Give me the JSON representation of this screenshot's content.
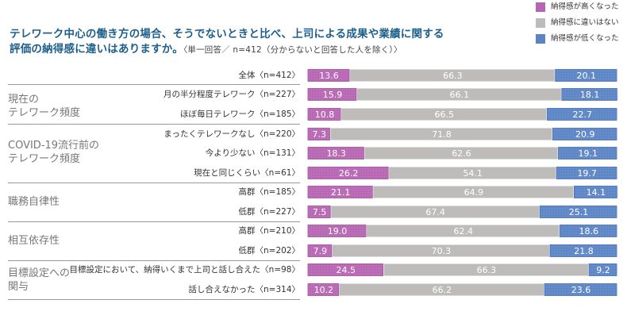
{
  "colors": {
    "higher": "#b765b3",
    "same": "#bebcba",
    "lower": "#5b84c6",
    "title": "#1d5f8a",
    "higher_border": "#9c4c98",
    "lower_border": "#3e6bb4"
  },
  "title": {
    "line1": "テレワーク中心の働き方の場合、そうでないときと比べ、上司による成果や業績に関する",
    "line2": "評価の納得感に違いはありますか。",
    "note": "〈単一回答／ n=412（分からないと回答した人を除く）〉"
  },
  "groups": [
    {
      "label_lines": [
        "現在の",
        "テレワーク頻度"
      ]
    },
    {
      "label_lines": [
        "COVID-19流行前の",
        "テレワーク頻度"
      ]
    },
    {
      "label_lines": [
        "職務自律性"
      ]
    },
    {
      "label_lines": [
        "相互依存性"
      ]
    },
    {
      "label_lines": [
        "目標設定への",
        "関与"
      ]
    }
  ],
  "chart_data": {
    "type": "bar",
    "orientation": "horizontal",
    "stacked": true,
    "unit": "%",
    "xlim": [
      0,
      100
    ],
    "legend_position": "top-right",
    "title": "テレワーク中心の働き方の場合、そうでないときと比べ、上司による成果や業績に関する評価の納得感に違いはありますか。",
    "subtitle": "〈単一回答／ n=412（分からないと回答した人を除く）〉",
    "legend": [
      "納得感が高くなった",
      "納得感に違いはない",
      "納得感が低くなった"
    ],
    "categories": [
      "全体〈n=412〉",
      "月の半分程度テレワーク〈n=227〉",
      "ほぼ毎日テレワーク〈n=185〉",
      "まったくテレワークなし〈n=220〉",
      "今より少ない〈n=131〉",
      "現在と同じくらい〈n=61〉",
      "高群〈n=185〉",
      "低群〈n=227〉",
      "高群〈n=210〉",
      "低群〈n=202〉",
      "目標設定において、納得いくまで上司と話し合えた〈n=98〉",
      "話し合えなかった〈n=314〉"
    ],
    "category_groups": [
      null,
      "現在のテレワーク頻度",
      "現在のテレワーク頻度",
      "COVID-19流行前のテレワーク頻度",
      "COVID-19流行前のテレワーク頻度",
      "COVID-19流行前のテレワーク頻度",
      "職務自律性",
      "職務自律性",
      "相互依存性",
      "相互依存性",
      "目標設定への関与",
      "目標設定への関与"
    ],
    "series": [
      {
        "name": "納得感が高くなった",
        "key": "higher",
        "values": [
          13.6,
          15.9,
          10.8,
          7.3,
          18.3,
          26.2,
          21.1,
          7.5,
          19.0,
          7.9,
          24.5,
          10.2
        ],
        "labels": [
          "13.6",
          "15.9",
          "10.8",
          "7.3",
          "18.3",
          "26.2",
          "21.1",
          "7.5",
          "19.0",
          "7.9",
          "24.5",
          "10.2"
        ]
      },
      {
        "name": "納得感に違いはない",
        "key": "same",
        "values": [
          66.3,
          66.1,
          66.5,
          71.8,
          62.6,
          54.1,
          64.9,
          67.4,
          62.4,
          70.3,
          66.3,
          66.2
        ],
        "labels": [
          "66.3",
          "66.1",
          "66.5",
          "71.8",
          "62.6",
          "54.1",
          "64.9",
          "67.4",
          "62.4",
          "70.3",
          "66.3",
          "66.2"
        ]
      },
      {
        "name": "納得感が低くなった",
        "key": "lower",
        "values": [
          20.1,
          18.1,
          22.7,
          20.9,
          19.1,
          19.7,
          14.1,
          25.1,
          18.6,
          21.8,
          9.2,
          23.6
        ],
        "labels": [
          "20.1",
          "18.1",
          "22.7",
          "20.9",
          "19.1",
          "19.7",
          "14.1",
          "25.1",
          "18.6",
          "21.8",
          "9.2",
          "23.6"
        ]
      }
    ]
  }
}
